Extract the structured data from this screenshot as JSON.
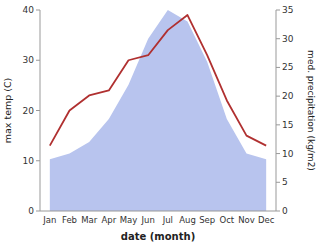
{
  "chart_data": {
    "type": "line",
    "categories": [
      "Jan",
      "Feb",
      "Mar",
      "Apr",
      "May",
      "Jun",
      "Jul",
      "Aug",
      "Sep",
      "Oct",
      "Nov",
      "Dec"
    ],
    "series": [
      {
        "type": "area",
        "color": "#b8c4ee",
        "axis": "y2",
        "values": [
          9,
          10,
          12,
          16,
          22,
          30,
          35,
          33,
          26,
          16,
          10,
          9
        ]
      },
      {
        "type": "line",
        "color": "#b03030",
        "values": [
          13,
          20,
          23,
          24,
          30,
          31,
          36,
          39,
          31,
          22,
          15,
          13
        ]
      }
    ],
    "xlabel": "date (month)",
    "ylabel": "max temp (C)",
    "y2label": "med. precipitation (kg/m2)",
    "ylim": [
      0,
      40
    ],
    "yticks": [
      0,
      10,
      20,
      30,
      40
    ],
    "y2lim": [
      0,
      35
    ],
    "y2ticks": [
      0,
      5,
      10,
      15,
      20,
      25,
      30,
      35
    ],
    "grid": false
  }
}
